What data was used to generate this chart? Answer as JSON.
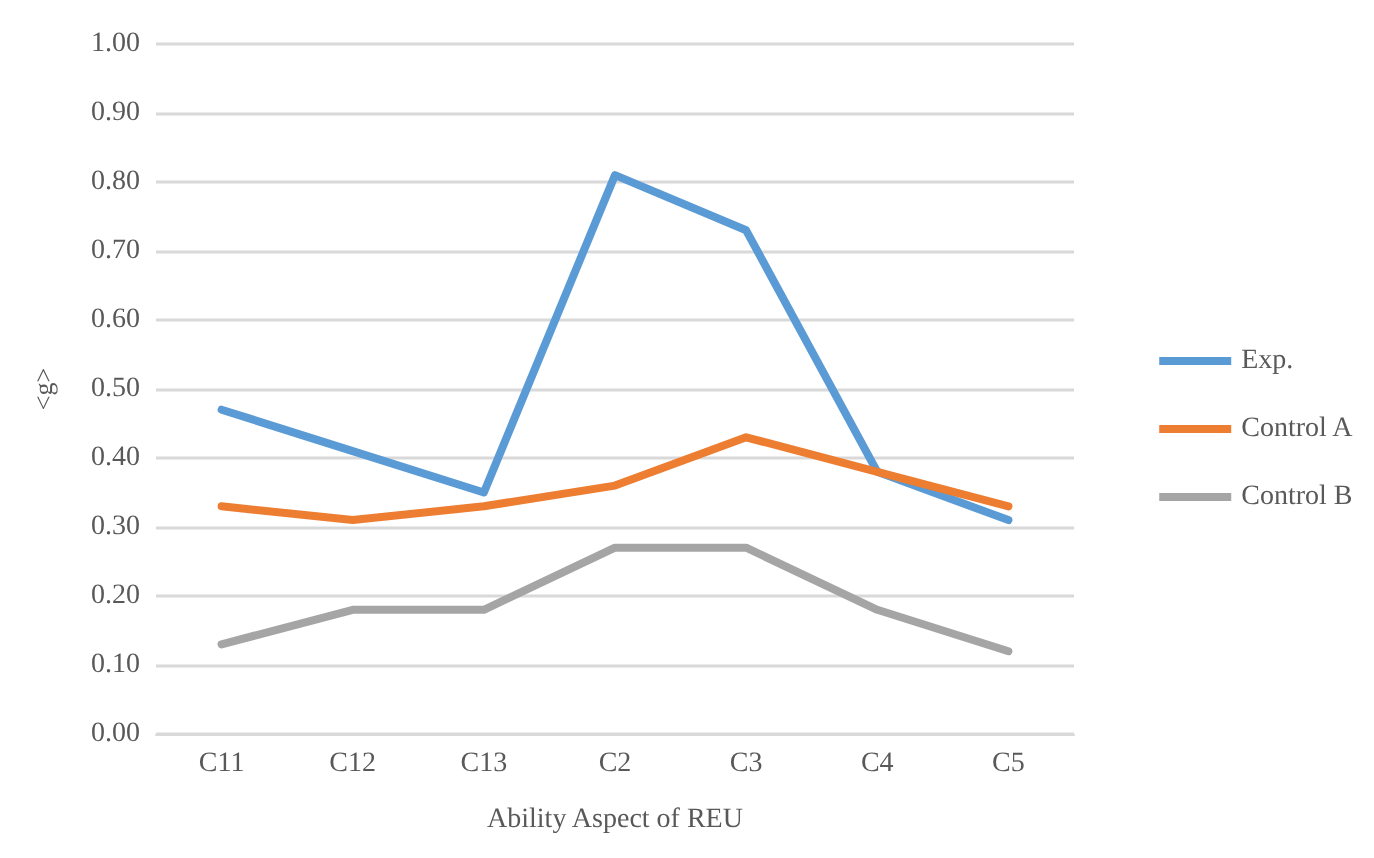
{
  "chart_data": {
    "type": "line",
    "xlabel": "Ability Aspect of REU",
    "ylabel": "<g>",
    "categories": [
      "C11",
      "C12",
      "C13",
      "C2",
      "C3",
      "C4",
      "C5"
    ],
    "series": [
      {
        "name": "Exp.",
        "color": "#5b9bd5",
        "values": [
          0.47,
          0.41,
          0.35,
          0.81,
          0.73,
          0.38,
          0.31
        ]
      },
      {
        "name": "Control A",
        "color": "#ed7d31",
        "values": [
          0.33,
          0.31,
          0.33,
          0.36,
          0.43,
          0.38,
          0.33
        ]
      },
      {
        "name": "Control B",
        "color": "#a5a5a5",
        "values": [
          0.13,
          0.18,
          0.18,
          0.27,
          0.27,
          0.18,
          0.12
        ]
      }
    ],
    "ylim": [
      0,
      1
    ],
    "yticks": [
      {
        "value": 0,
        "label": "0.00"
      },
      {
        "value": 0.1,
        "label": "0.10"
      },
      {
        "value": 0.2,
        "label": "0.20"
      },
      {
        "value": 0.3,
        "label": "0.30"
      },
      {
        "value": 0.4,
        "label": "0.40"
      },
      {
        "value": 0.5,
        "label": "0.50"
      },
      {
        "value": 0.6,
        "label": "0.60"
      },
      {
        "value": 0.7,
        "label": "0.70"
      },
      {
        "value": 0.8,
        "label": "0.80"
      },
      {
        "value": 0.9,
        "label": "0.90"
      },
      {
        "value": 1,
        "label": "1.00"
      }
    ],
    "grid": "y",
    "legend": "right",
    "marker": "none",
    "line_style": "solid"
  }
}
